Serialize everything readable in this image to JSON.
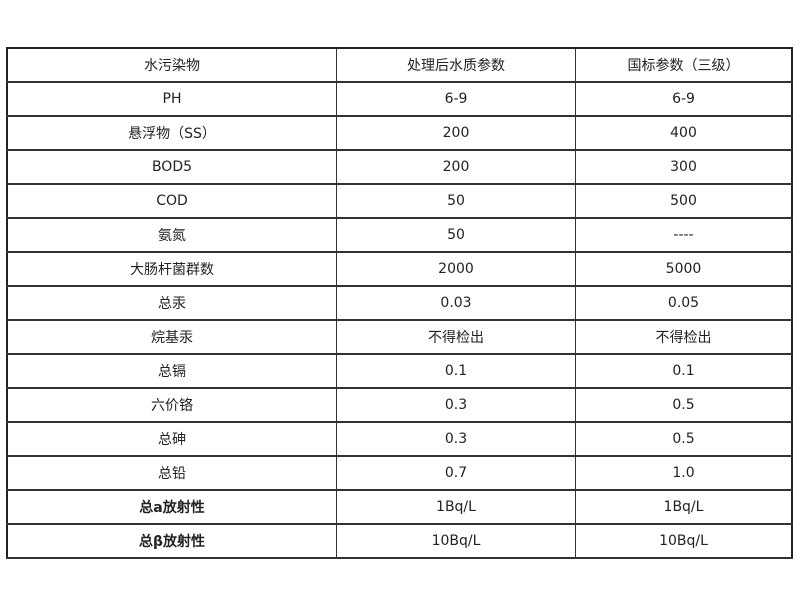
{
  "headers": [
    "水污染物",
    "处理后水质参数",
    "国标参数（三级）"
  ],
  "rows": [
    {
      "pollutant": "PH",
      "treated": "6-9",
      "standard": "6-9"
    },
    {
      "pollutant": "悬浮物（SS）",
      "treated": "200",
      "standard": "400"
    },
    {
      "pollutant": "BOD5",
      "treated": "200",
      "standard": "300"
    },
    {
      "pollutant": "COD",
      "treated": "50",
      "standard": "500"
    },
    {
      "pollutant": "氨氮",
      "treated": "50",
      "standard": "----"
    },
    {
      "pollutant": "大肠杆菌群数",
      "treated": "2000",
      "standard": "5000"
    },
    {
      "pollutant": "总汞",
      "treated": "0.03",
      "standard": "0.05"
    },
    {
      "pollutant": "烷基汞",
      "treated": "不得检出",
      "standard": "不得检出"
    },
    {
      "pollutant": "总镉",
      "treated": "0.1",
      "standard": "0.1"
    },
    {
      "pollutant": "六价铬",
      "treated": "0.3",
      "standard": "0.5"
    },
    {
      "pollutant": "总砷",
      "treated": "0.3",
      "standard": "0.5"
    },
    {
      "pollutant": "总铅",
      "treated": "0.7",
      "standard": "1.0"
    },
    {
      "pollutant": "总a放射性",
      "treated": "1Bq/L",
      "standard": "1Bq/L"
    },
    {
      "pollutant": "总β放射性",
      "treated": "10Bq/L",
      "standard": "10Bq/L"
    }
  ]
}
